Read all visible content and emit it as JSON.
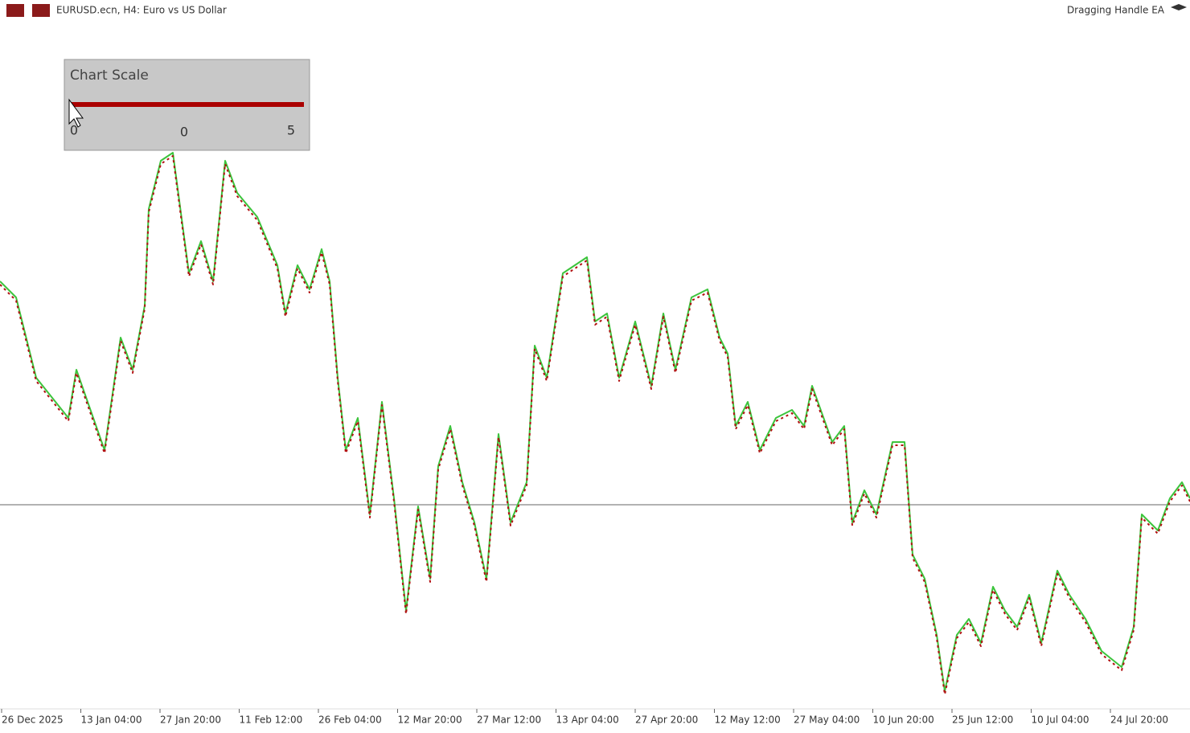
{
  "header": {
    "symbol": "EURUSD.ecn, H4:  Euro vs US Dollar",
    "expert": "Dragging Handle EA"
  },
  "panel": {
    "title": "Chart Scale",
    "slider": {
      "min": 0,
      "value": 0,
      "max": 5
    }
  },
  "x_axis": {
    "labels": [
      "26 Dec 2025",
      "13 Jan 04:00",
      "27 Jan 20:00",
      "11 Feb 12:00",
      "26 Feb 04:00",
      "12 Mar 20:00",
      "27 Mar 12:00",
      "13 Apr 04:00",
      "27 Apr 20:00",
      "12 May 12:00",
      "27 May 04:00",
      "10 Jun 20:00",
      "25 Jun 12:00",
      "10 Jul 04:00",
      "24 Jul 20:00"
    ]
  }
}
